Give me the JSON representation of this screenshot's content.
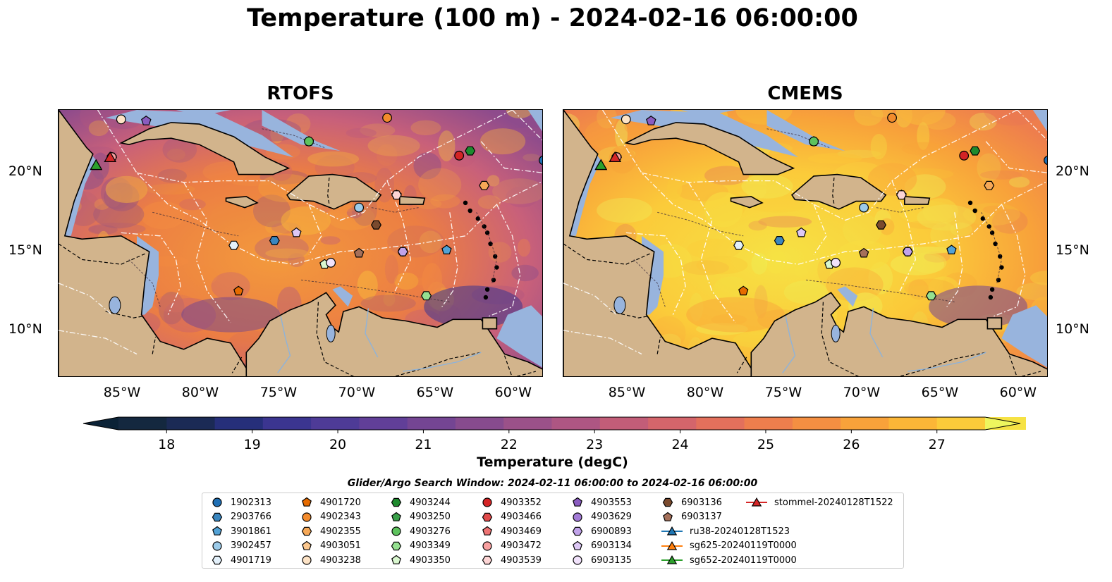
{
  "title": "Temperature (100 m) - 2024-02-16 06:00:00",
  "panels": [
    {
      "title": "RTOFS",
      "variant": "rtofs"
    },
    {
      "title": "CMEMS",
      "variant": "cmems"
    }
  ],
  "lon_ticks": [
    "85°W",
    "80°W",
    "75°W",
    "70°W",
    "65°W",
    "60°W"
  ],
  "lat_ticks": [
    "20°N",
    "15°N",
    "10°N"
  ],
  "colorbar": {
    "label": "Temperature (degC)",
    "ticks": [
      "18",
      "19",
      "20",
      "21",
      "22",
      "23",
      "24",
      "25",
      "26",
      "27"
    ],
    "colors": [
      "#0b2236",
      "#14283f",
      "#1b2a55",
      "#262f7a",
      "#3b3590",
      "#4e3b97",
      "#613f98",
      "#744593",
      "#874b8e",
      "#9b5189",
      "#ae5683",
      "#c25d78",
      "#d4656b",
      "#e3705c",
      "#ee7e4d",
      "#f48f42",
      "#f8a23a",
      "#fbb637",
      "#fbcb3a",
      "#f6e244",
      "#eef65e"
    ]
  },
  "search_window": "Glider/Argo Search Window: 2024-02-11 06:00:00 to 2024-02-16 06:00:00",
  "colors": {
    "land": "#d2b48c",
    "shelf": "#98b4dd",
    "deep_pacific": "#0b2236",
    "rtofs_ocean": "#e8803f",
    "cmems_ocean": "#f7c23b"
  },
  "chart_data": {
    "type": "heatmap",
    "title": "Temperature (100 m) - 2024-02-16 06:00:00",
    "variable": "Temperature (degC)",
    "depth_m": 100,
    "time": "2024-02-16 06:00:00",
    "lon_range": [
      -89,
      -58
    ],
    "lat_range": [
      7,
      24
    ],
    "colorbar_range": [
      18,
      27
    ],
    "subplots": [
      "RTOFS",
      "CMEMS"
    ],
    "argo_floats": [
      {
        "id": "1902313",
        "marker": "circle",
        "color": "#1f6fb4",
        "lon": -58,
        "lat": 20.8
      },
      {
        "id": "2903766",
        "marker": "hexagon",
        "color": "#3a86bf",
        "lon": -75.2,
        "lat": 15.7
      },
      {
        "id": "3901861",
        "marker": "pentagon",
        "color": "#52a2d6",
        "lon": -64.2,
        "lat": 15.1
      },
      {
        "id": "3902457",
        "marker": "circle",
        "color": "#9ccbe9",
        "lon": -69.8,
        "lat": 17.8
      },
      {
        "id": "4901719",
        "marker": "hexagon",
        "color": "#e3f0fa",
        "lon": -77.8,
        "lat": 15.4
      },
      {
        "id": "4901720",
        "marker": "pentagon",
        "color": "#e66b00",
        "lon": -77.5,
        "lat": 12.5
      },
      {
        "id": "4902343",
        "marker": "circle",
        "color": "#f38b2c",
        "lon": -68,
        "lat": 23.5
      },
      {
        "id": "4902355",
        "marker": "hexagon",
        "color": "#f6a857",
        "lon": -61.8,
        "lat": 19.2
      },
      {
        "id": "4903051",
        "marker": "pentagon",
        "color": "#fbc78e",
        "lon": -67.4,
        "lat": 18.6
      },
      {
        "id": "4903238",
        "marker": "circle",
        "color": "#fde3c6",
        "lon": -85,
        "lat": 23.4
      },
      {
        "id": "4903244",
        "marker": "hexagon",
        "color": "#1e8a2e",
        "lon": -62.7,
        "lat": 21.4
      },
      {
        "id": "4903250",
        "marker": "pentagon",
        "color": "#3aa04a",
        "lon": -73,
        "lat": 22
      },
      {
        "id": "4903276",
        "marker": "circle",
        "color": "#5ec35e",
        "lon": -73,
        "lat": 22
      },
      {
        "id": "4903349",
        "marker": "hexagon",
        "color": "#95e090",
        "lon": -65.5,
        "lat": 12.2
      },
      {
        "id": "4903350",
        "marker": "pentagon",
        "color": "#d9f7cf",
        "lon": -72,
        "lat": 14.2
      },
      {
        "id": "4903352",
        "marker": "circle",
        "color": "#d42425",
        "lon": -63.4,
        "lat": 21.1
      },
      {
        "id": "4903466",
        "marker": "hexagon",
        "color": "#e04a4a",
        "lon": -85.6,
        "lat": 21.0
      },
      {
        "id": "4903469",
        "marker": "pentagon",
        "color": "#ee7373",
        "lon": -85.6,
        "lat": 21.0
      },
      {
        "id": "4903472",
        "marker": "circle",
        "color": "#f8a0a0",
        "lon": -85.6,
        "lat": 21.0
      },
      {
        "id": "4903539",
        "marker": "hexagon",
        "color": "#fcd4d4",
        "lon": -67.4,
        "lat": 18.6
      },
      {
        "id": "4903553",
        "marker": "pentagon",
        "color": "#8a5cc0",
        "lon": -83.4,
        "lat": 23.3
      },
      {
        "id": "4903629",
        "marker": "circle",
        "color": "#a27ad6",
        "lon": -67,
        "lat": 15.0
      },
      {
        "id": "6900893",
        "marker": "hexagon",
        "color": "#c1a3ea",
        "lon": -67,
        "lat": 15.0
      },
      {
        "id": "6903134",
        "marker": "pentagon",
        "color": "#ddc8f5",
        "lon": -73.8,
        "lat": 16.2
      },
      {
        "id": "6903135",
        "marker": "circle",
        "color": "#f1e2fb",
        "lon": -71.6,
        "lat": 14.3
      },
      {
        "id": "6903136",
        "marker": "hexagon",
        "color": "#7a4a2e",
        "lon": -68.7,
        "lat": 16.7
      },
      {
        "id": "6903137",
        "marker": "pentagon",
        "color": "#a5705a",
        "lon": -69.8,
        "lat": 14.9
      }
    ],
    "gliders": [
      {
        "id": "ru38-20240128T1523",
        "marker": "triangle",
        "color": "#1f77b4",
        "lon": -86.6,
        "lat": 20.5
      },
      {
        "id": "sg625-20240119T0000",
        "marker": "triangle",
        "color": "#ff7f0e",
        "lon": -86.6,
        "lat": 20.5
      },
      {
        "id": "sg652-20240119T0000",
        "marker": "triangle",
        "color": "#2ca02c",
        "lon": -86.6,
        "lat": 20.5
      },
      {
        "id": "stommel-20240128T1522",
        "marker": "triangle",
        "color": "#d62728",
        "lon": -85.7,
        "lat": 21.0
      }
    ]
  }
}
